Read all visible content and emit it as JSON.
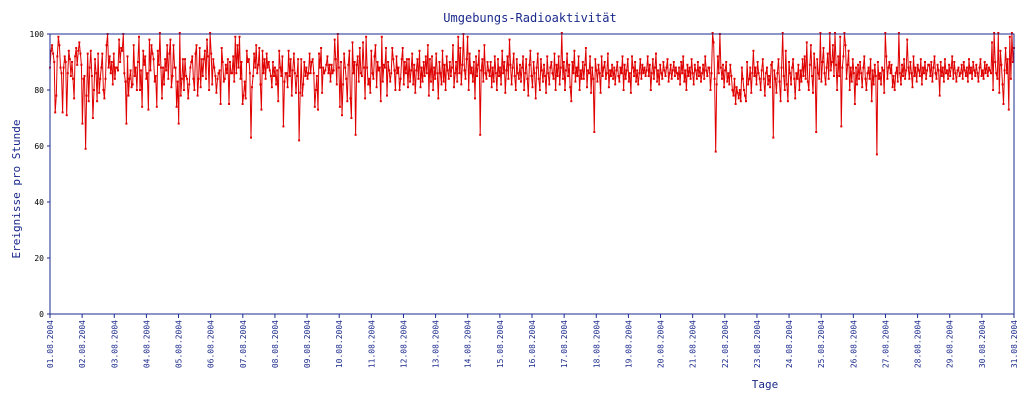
{
  "chart_data": {
    "type": "line",
    "title": "Umgebungs-Radioaktivität",
    "ylabel": "Ereignisse pro Stunde",
    "xlabel": "Tage",
    "ylim": [
      0,
      100
    ],
    "yticks": [
      0,
      20,
      40,
      60,
      80,
      100
    ],
    "x_tick_labels": [
      "01.08.2004",
      "02.08.2004",
      "03.08.2004",
      "04.08.2004",
      "05.08.2004",
      "06.08.2004",
      "07.08.2004",
      "08.08.2004",
      "09.08.2004",
      "10.08.2004",
      "11.08.2004",
      "12.08.2004",
      "13.08.2004",
      "14.08.2004",
      "15.08.2004",
      "16.08.2004",
      "17.08.2004",
      "18.08.2004",
      "19.08.2004",
      "20.08.2004",
      "21.08.2004",
      "22.08.2004",
      "23.08.2004",
      "24.08.2004",
      "25.08.2004",
      "26.08.2004",
      "27.08.2004",
      "28.08.2004",
      "29.08.2004",
      "30.08.2004",
      "31.08.2004"
    ],
    "grid": false,
    "series": [
      {
        "color": "#e00000",
        "values": [
          [
            88,
            94,
            96,
            93,
            90,
            72,
            78,
            92,
            99,
            96,
            88,
            86,
            72,
            88,
            92,
            90,
            71,
            86,
            94,
            91,
            85,
            90,
            84,
            77,
            92,
            95,
            89,
            94,
            97,
            93
          ],
          [
            89,
            68,
            84,
            85,
            59,
            78,
            93,
            76,
            88,
            94,
            85,
            70,
            80,
            91,
            86,
            76,
            93,
            79,
            84,
            88,
            93,
            80,
            77,
            84,
            96,
            100,
            88,
            92,
            86,
            90
          ],
          [
            82,
            93,
            84,
            88,
            88,
            87,
            98,
            90,
            95,
            94,
            100,
            86,
            83,
            68,
            92,
            78,
            84,
            87,
            81,
            82,
            96,
            85,
            88,
            80,
            90,
            99,
            80,
            87,
            74,
            94
          ],
          [
            89,
            92,
            84,
            86,
            73,
            98,
            87,
            96,
            93,
            91,
            83,
            85,
            74,
            94,
            89,
            101,
            88,
            77,
            88,
            82,
            91,
            87,
            96,
            84,
            93,
            98,
            81,
            85,
            96,
            88
          ],
          [
            88,
            74,
            83,
            68,
            102,
            78,
            84,
            91,
            80,
            91,
            85,
            84,
            77,
            82,
            88,
            90,
            92,
            84,
            80,
            93,
            96,
            78,
            84,
            95,
            81,
            91,
            85,
            91,
            94,
            84
          ],
          [
            98,
            92,
            80,
            104,
            93,
            82,
            91,
            88,
            85,
            79,
            84,
            86,
            87,
            75,
            95,
            90,
            83,
            84,
            89,
            86,
            91,
            75,
            90,
            86,
            86,
            92,
            83,
            99,
            86,
            96
          ],
          [
            88,
            99,
            84,
            90,
            75,
            78,
            83,
            77,
            94,
            90,
            91,
            86,
            63,
            81,
            85,
            93,
            88,
            96,
            86,
            89,
            95,
            82,
            73,
            94,
            86,
            91,
            84,
            93,
            88,
            90
          ],
          [
            87,
            85,
            81,
            90,
            85,
            88,
            82,
            87,
            76,
            94,
            88,
            85,
            92,
            67,
            83,
            86,
            86,
            81,
            94,
            85,
            91,
            78,
            87,
            93,
            86,
            79,
            85,
            91,
            62,
            79
          ],
          [
            91,
            78,
            82,
            90,
            85,
            88,
            84,
            86,
            93,
            86,
            90,
            91,
            86,
            74,
            80,
            85,
            73,
            93,
            88,
            95,
            79,
            88,
            86,
            87,
            89,
            92,
            86,
            89,
            83,
            89
          ],
          [
            86,
            87,
            98,
            91,
            82,
            100,
            88,
            74,
            90,
            71,
            82,
            93,
            88,
            84,
            76,
            89,
            94,
            77,
            70,
            97,
            86,
            90,
            64,
            89,
            92,
            83,
            95,
            86,
            85,
            97
          ],
          [
            88,
            77,
            99,
            88,
            82,
            84,
            79,
            94,
            86,
            84,
            92,
            96,
            81,
            90,
            87,
            88,
            76,
            99,
            83,
            89,
            88,
            95,
            78,
            90,
            87,
            83,
            86,
            95,
            91,
            87
          ],
          [
            80,
            92,
            86,
            88,
            80,
            84,
            91,
            95,
            82,
            90,
            86,
            91,
            81,
            91,
            83,
            87,
            93,
            82,
            89,
            79,
            87,
            91,
            84,
            94,
            81,
            88,
            83,
            90,
            85,
            92
          ],
          [
            86,
            96,
            78,
            91,
            83,
            92,
            80,
            88,
            84,
            93,
            86,
            77,
            90,
            86,
            82,
            94,
            83,
            89,
            80,
            92,
            87,
            84,
            90,
            85,
            88,
            96,
            81,
            86,
            90,
            83
          ],
          [
            99,
            86,
            95,
            82,
            89,
            100,
            87,
            84,
            91,
            99,
            80,
            93,
            86,
            88,
            83,
            90,
            77,
            92,
            85,
            89,
            94,
            64,
            87,
            91,
            83,
            96,
            86,
            84,
            90,
            87
          ],
          [
            85,
            90,
            81,
            88,
            83,
            92,
            86,
            80,
            91,
            85,
            88,
            82,
            94,
            86,
            90,
            79,
            87,
            92,
            84,
            98,
            89,
            82,
            88,
            93,
            85,
            80,
            91,
            86,
            84,
            89
          ],
          [
            83,
            88,
            92,
            80,
            86,
            91,
            84,
            78,
            89,
            94,
            85,
            81,
            90,
            86,
            77,
            88,
            93,
            84,
            80,
            91,
            87,
            83,
            89,
            85,
            79,
            92,
            86,
            82,
            88,
            90
          ],
          [
            86,
            84,
            93,
            80,
            89,
            85,
            92,
            82,
            88,
            101,
            84,
            90,
            80,
            87,
            93,
            85,
            89,
            81,
            76,
            90,
            86,
            94,
            83,
            88,
            85,
            92,
            80,
            87,
            84,
            90
          ],
          [
            84,
            89,
            95,
            81,
            87,
            86,
            92,
            79,
            88,
            84,
            65,
            91,
            87,
            83,
            89,
            86,
            79,
            92,
            85,
            88,
            90,
            84,
            86,
            93,
            81,
            87,
            85,
            89,
            84,
            88
          ],
          [
            82,
            87,
            90,
            85,
            83,
            88,
            86,
            92,
            80,
            89,
            84,
            87,
            91,
            83,
            86,
            79,
            92,
            88,
            85,
            90,
            83,
            87,
            82,
            86,
            91,
            84,
            89,
            86,
            88,
            85
          ],
          [
            87,
            92,
            85,
            89,
            80,
            86,
            91,
            84,
            88,
            93,
            83,
            87,
            82,
            89,
            86,
            84,
            90,
            87,
            85,
            88,
            91,
            83,
            86,
            89,
            84,
            87,
            90,
            85,
            88,
            86
          ],
          [
            84,
            88,
            82,
            90,
            86,
            92,
            83,
            87,
            80,
            89,
            85,
            88,
            84,
            91,
            86,
            82,
            89,
            87,
            84,
            90,
            85,
            88,
            83,
            86,
            89,
            84,
            92,
            87,
            85,
            88
          ],
          [
            88,
            80,
            86,
            106,
            97,
            84,
            58,
            82,
            92,
            86,
            100,
            88,
            84,
            89,
            81,
            87,
            90,
            83,
            86,
            82,
            89,
            85,
            80,
            78,
            84,
            75,
            81,
            79,
            77,
            80
          ],
          [
            76,
            88,
            84,
            80,
            78,
            76,
            90,
            82,
            84,
            88,
            79,
            86,
            94,
            85,
            88,
            82,
            90,
            86,
            84,
            80,
            87,
            91,
            84,
            78,
            86,
            88,
            82,
            85,
            81,
            89
          ],
          [
            90,
            63,
            87,
            84,
            79,
            86,
            91,
            83,
            76,
            88,
            106,
            85,
            80,
            94,
            82,
            76,
            90,
            86,
            82,
            88,
            91,
            84,
            77,
            86,
            84,
            89,
            80,
            87,
            83,
            91
          ],
          [
            85,
            92,
            84,
            97,
            83,
            80,
            89,
            96,
            85,
            79,
            93,
            88,
            65,
            91,
            86,
            84,
            104,
            83,
            90,
            95,
            86,
            82,
            88,
            93,
            84,
            101,
            87,
            90,
            96,
            85
          ],
          [
            107,
            89,
            80,
            92,
            85,
            99,
            67,
            88,
            92,
            109,
            96,
            84,
            89,
            94,
            80,
            88,
            83,
            91,
            86,
            75,
            88,
            82,
            89,
            84,
            90,
            86,
            81,
            88,
            92,
            84
          ],
          [
            80,
            86,
            88,
            84,
            91,
            76,
            87,
            82,
            89,
            85,
            57,
            90,
            84,
            86,
            82,
            88,
            87,
            79,
            111,
            92,
            84,
            88,
            90,
            86,
            89,
            81,
            85,
            80,
            86,
            88
          ],
          [
            83,
            108,
            86,
            82,
            89,
            85,
            91,
            84,
            87,
            98,
            88,
            84,
            90,
            86,
            81,
            92,
            85,
            88,
            83,
            89,
            87,
            85,
            91,
            82,
            88,
            86,
            90,
            84,
            87,
            89
          ],
          [
            89,
            85,
            90,
            83,
            88,
            92,
            86,
            84,
            89,
            87,
            78,
            90,
            85,
            88,
            83,
            91,
            86,
            87,
            84,
            89,
            85,
            88,
            92,
            84,
            90,
            86,
            83,
            87,
            88,
            85
          ],
          [
            86,
            89,
            84,
            90,
            87,
            85,
            88,
            83,
            91,
            86,
            88,
            84,
            90,
            87,
            85,
            89,
            86,
            83,
            88,
            91,
            85,
            87,
            84,
            90,
            86,
            89,
            85,
            88,
            87,
            86
          ],
          [
            97,
            80,
            102,
            90,
            86,
            84,
            102,
            79,
            94,
            89,
            82,
            75,
            87,
            95,
            86,
            91,
            73,
            99,
            84,
            107,
            90,
            95
          ]
        ]
      }
    ]
  }
}
